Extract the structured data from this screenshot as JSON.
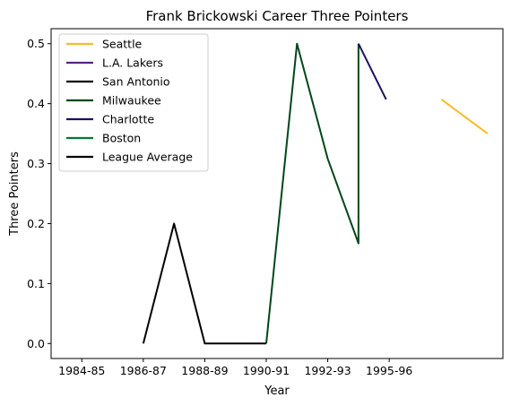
{
  "chart_data": {
    "type": "line",
    "title": "Frank Brickowski Career Three Pointers",
    "xlabel": "Year",
    "ylabel": "Three Pointers",
    "x_ticks": [
      "1984-85",
      "1986-87",
      "1988-89",
      "1990-91",
      "1992-93",
      "1995-96"
    ],
    "y_ticks": [
      "0.0",
      "0.1",
      "0.2",
      "0.3",
      "0.4",
      "0.5"
    ],
    "ylim": [
      -0.025,
      0.525
    ],
    "grid": false,
    "legend_position": "top-left",
    "series": [
      {
        "name": "Seattle",
        "color": "#FDB927",
        "points": [
          [
            5.85,
            0.407
          ],
          [
            6.6,
            0.35
          ]
        ]
      },
      {
        "name": "L.A. Lakers",
        "color": "#552583",
        "points": []
      },
      {
        "name": "San Antonio",
        "color": "#000000",
        "points": []
      },
      {
        "name": "Milwaukee",
        "color": "#00471B",
        "points": [
          [
            3.0,
            0.0
          ],
          [
            3.5,
            0.5
          ],
          [
            4.0,
            0.308
          ],
          [
            4.5,
            0.167
          ],
          [
            4.5,
            0.5
          ]
        ]
      },
      {
        "name": "Charlotte",
        "color": "#1D1160",
        "points": [
          [
            4.5,
            0.5
          ],
          [
            4.95,
            0.407
          ]
        ]
      },
      {
        "name": "Boston",
        "color": "#007A33",
        "points": []
      },
      {
        "name": "League Average",
        "color": "#000000",
        "points": [
          [
            1.0,
            0.0
          ],
          [
            1.5,
            0.2
          ],
          [
            2.0,
            0.0
          ],
          [
            2.5,
            0.0
          ],
          [
            3.0,
            0.0
          ]
        ]
      }
    ]
  }
}
